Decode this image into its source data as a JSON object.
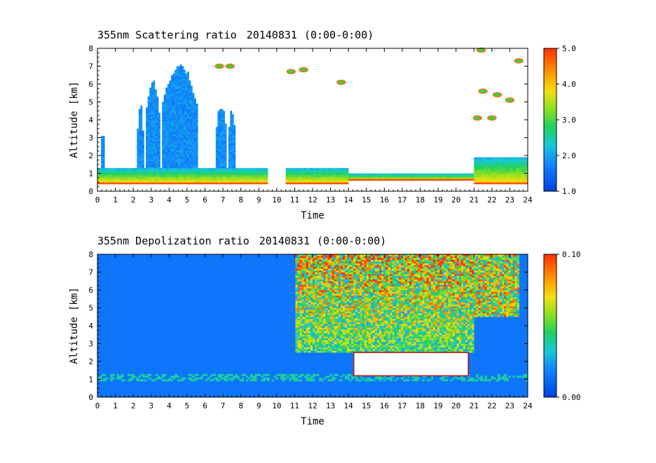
{
  "chart_data": [
    {
      "type": "heatmap",
      "title": "355nm Scattering ratio",
      "date": "20140831",
      "time_range": "(0:00-0:00)",
      "xlabel": "Time",
      "ylabel": "Altitude [km]",
      "xlim": [
        0,
        24
      ],
      "ylim": [
        0,
        8
      ],
      "x_ticks": [
        "0",
        "1",
        "2",
        "3",
        "4",
        "5",
        "6",
        "7",
        "8",
        "9",
        "10",
        "11",
        "12",
        "13",
        "14",
        "15",
        "16",
        "17",
        "18",
        "19",
        "20",
        "21",
        "22",
        "23",
        "24"
      ],
      "y_ticks": [
        "0",
        "1",
        "2",
        "3",
        "4",
        "5",
        "6",
        "7",
        "8"
      ],
      "colorbar": {
        "min": 1.0,
        "max": 5.0,
        "ticks": [
          "1.0",
          "2.0",
          "3.0",
          "4.0",
          "5.0"
        ]
      },
      "features": {
        "boundary_layer": [
          {
            "t0": 0.0,
            "t1": 9.5,
            "base_km": 0.4,
            "top_km": 1.3
          },
          {
            "t0": 10.5,
            "t1": 14.0,
            "base_km": 0.4,
            "top_km": 1.3
          },
          {
            "t0": 14.0,
            "t1": 21.0,
            "base_km": 0.6,
            "top_km": 1.0
          },
          {
            "t0": 21.0,
            "t1": 24.0,
            "base_km": 0.4,
            "top_km": 1.9
          }
        ],
        "aerosol_plumes": [
          {
            "t_center": 0.3,
            "half_width": 0.1,
            "top_km": 3.5
          },
          {
            "t_center": 2.4,
            "half_width": 0.15,
            "top_km": 5.2
          },
          {
            "t_center": 3.1,
            "half_width": 0.4,
            "top_km": 6.3
          },
          {
            "t_center": 4.6,
            "half_width": 1.0,
            "top_km": 7.2
          },
          {
            "t_center": 6.9,
            "half_width": 0.3,
            "top_km": 5.0
          },
          {
            "t_center": 7.5,
            "half_width": 0.2,
            "top_km": 4.8
          }
        ]
      }
    },
    {
      "type": "heatmap",
      "title": "355nm Depolization ratio",
      "date": "20140831",
      "time_range": "(0:00-0:00)",
      "xlabel": "Time",
      "ylabel": "Altitude [km]",
      "xlim": [
        0,
        24
      ],
      "ylim": [
        0,
        8
      ],
      "x_ticks": [
        "0",
        "1",
        "2",
        "3",
        "4",
        "5",
        "6",
        "7",
        "8",
        "9",
        "10",
        "11",
        "12",
        "13",
        "14",
        "15",
        "16",
        "17",
        "18",
        "19",
        "20",
        "21",
        "22",
        "23",
        "24"
      ],
      "y_ticks": [
        "0",
        "1",
        "2",
        "3",
        "4",
        "5",
        "6",
        "7",
        "8"
      ],
      "colorbar": {
        "min": 0.0,
        "max": 0.1,
        "ticks": [
          "0.00",
          "0.10"
        ]
      },
      "features": {
        "noisy_region": {
          "t0": 11.0,
          "t1": 21.0,
          "min_km": 2.5,
          "max_km": 8.0
        },
        "high_depol_layer": {
          "t0": 14.3,
          "t1": 20.7,
          "base_km": 1.2,
          "top_km": 2.5
        }
      }
    }
  ]
}
